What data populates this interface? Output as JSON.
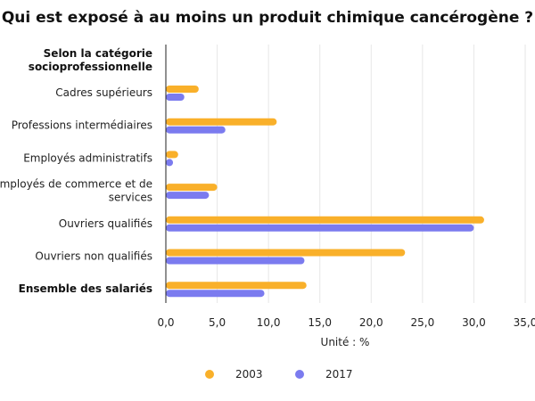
{
  "chart_data": {
    "type": "bar",
    "orientation": "horizontal",
    "title": "Qui est exposé à au moins un produit chimique cancérogène ?",
    "group_header": [
      "Selon la catégorie",
      "socioprofessionnelle"
    ],
    "categories": [
      "Cadres supérieurs",
      "Professions intermédiaires",
      "Employés administratifs",
      "Employés de commerce et de services",
      "Ouvriers qualifiés",
      "Ouvriers non qualifiés",
      "Ensemble des salariés"
    ],
    "category_lines": [
      [
        "Cadres supérieurs"
      ],
      [
        "Professions intermédiaires"
      ],
      [
        "Employés administratifs"
      ],
      [
        "Employés de commerce et de",
        "services"
      ],
      [
        "Ouvriers qualifiés"
      ],
      [
        "Ouvriers non qualifiés"
      ],
      [
        "Ensemble des salariés"
      ]
    ],
    "bold_categories": [
      "Ensemble des salariés"
    ],
    "series": [
      {
        "name": "2003",
        "color": "#f9b02a",
        "values": [
          3.2,
          10.8,
          1.2,
          5.0,
          31.0,
          23.3,
          13.7
        ]
      },
      {
        "name": "2017",
        "color": "#7b7bef",
        "values": [
          1.8,
          5.8,
          0.7,
          4.2,
          30.0,
          13.5,
          9.6
        ]
      }
    ],
    "xlabel": "Unité : %",
    "xlim": [
      0,
      35
    ],
    "xticks": [
      0,
      5,
      10,
      15,
      20,
      25,
      30,
      35
    ],
    "xtick_labels": [
      "0,0",
      "5,0",
      "10,0",
      "15,0",
      "20,0",
      "25,0",
      "30,0",
      "35,0"
    ],
    "grid": "vertical",
    "legend": "bottom"
  }
}
